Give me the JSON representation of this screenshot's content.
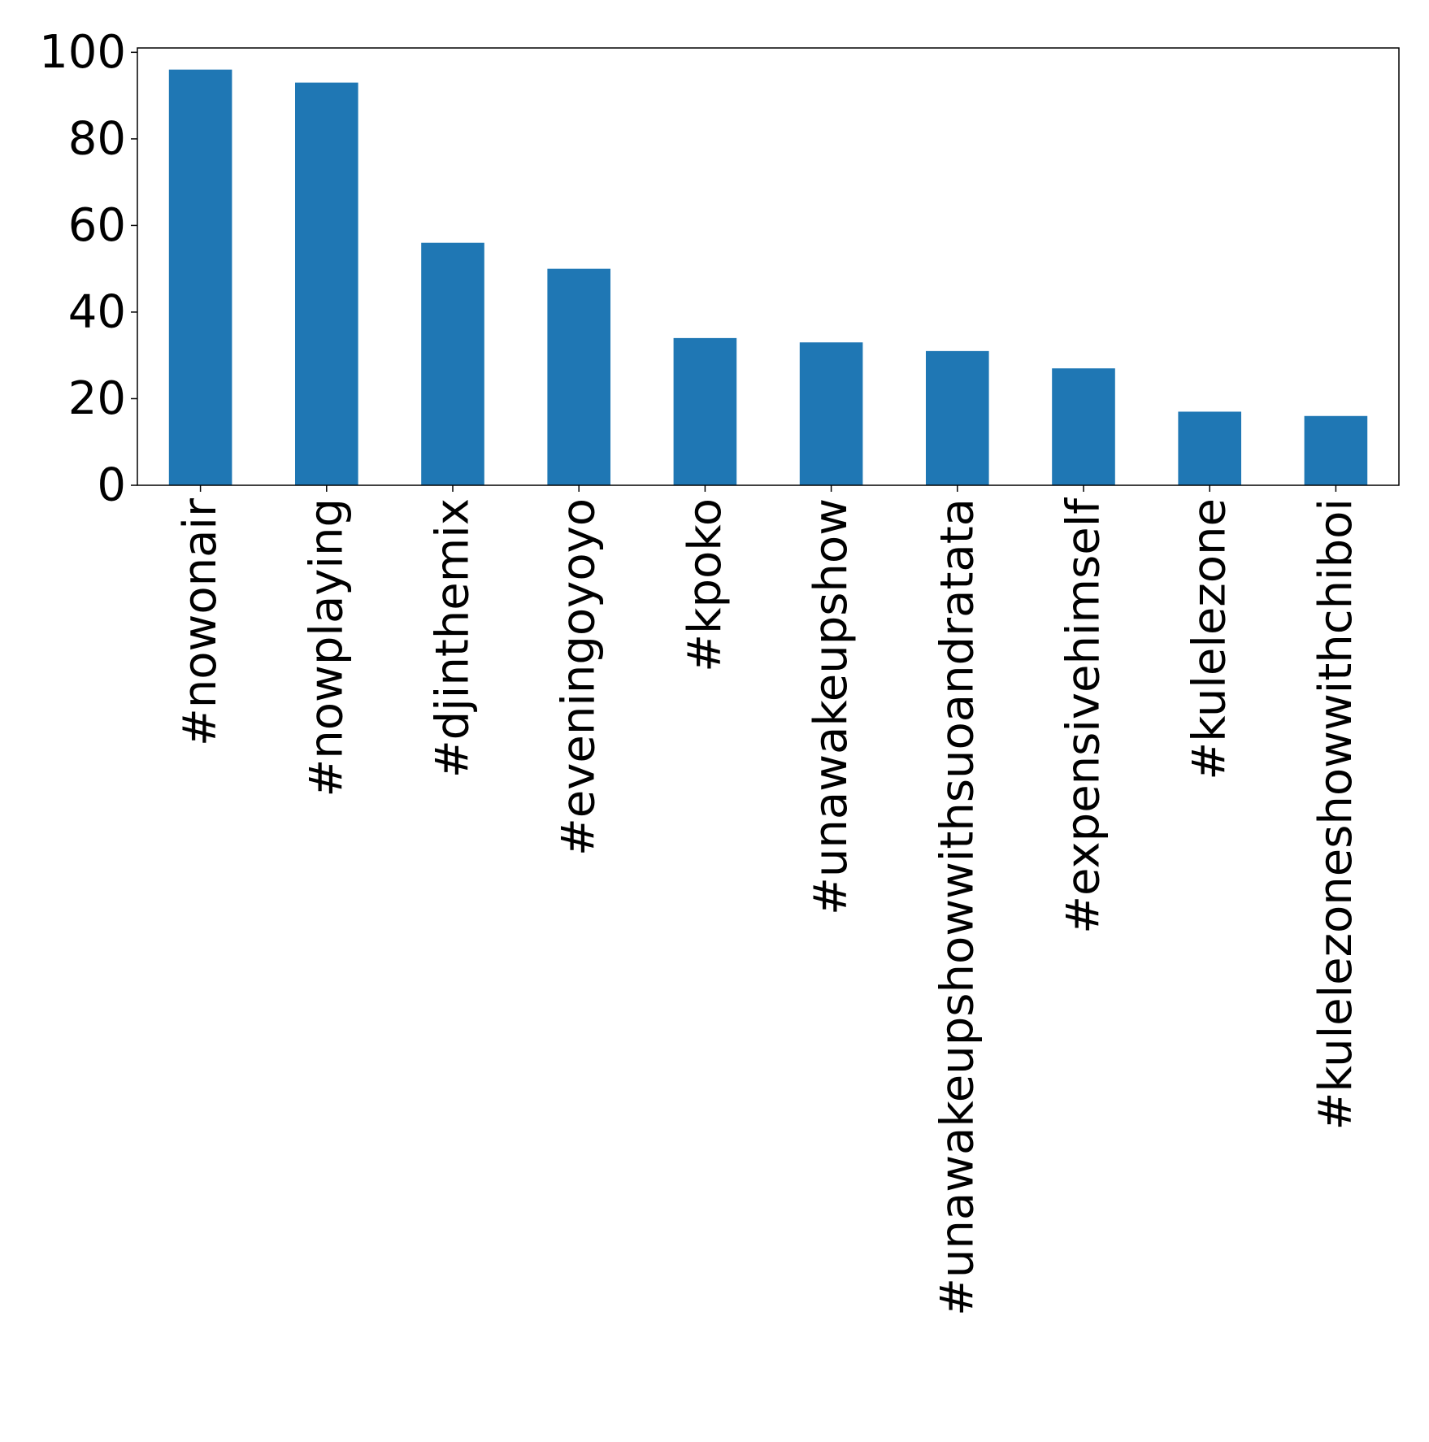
{
  "chart_data": {
    "type": "bar",
    "title": "",
    "xlabel": "",
    "ylabel": "",
    "categories": [
      "#nowonair",
      "#nowplaying",
      "#djinthemix",
      "#eveningoyoyo",
      "#kpoko",
      "#unawakeupshow",
      "#unawakeupshowwithsuoandratata",
      "#expensivehimself",
      "#kulelezone",
      "#kulelezoneshowwithchiboi"
    ],
    "values": [
      96,
      93,
      56,
      50,
      34,
      33,
      31,
      27,
      17,
      16
    ],
    "ylim": [
      0,
      101
    ],
    "yticks": [
      0,
      20,
      40,
      60,
      80,
      100
    ],
    "grid": false,
    "bar_color": "#1f77b4"
  }
}
